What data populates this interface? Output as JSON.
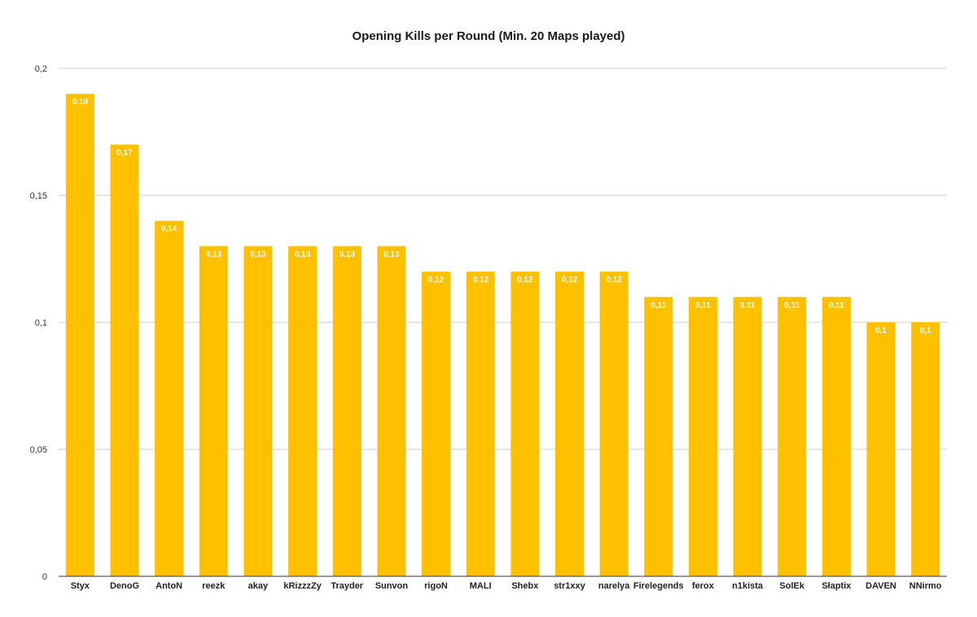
{
  "chart_data": {
    "type": "bar",
    "title": "Opening Kills per Round (Min. 20 Maps played)",
    "xlabel": "",
    "ylabel": "",
    "ylim": [
      0,
      0.2
    ],
    "yticks": [
      0,
      0.05,
      0.1,
      0.15,
      0.2
    ],
    "ytick_labels": [
      "0",
      "0,05",
      "0,1",
      "0,15",
      "0,2"
    ],
    "grid": true,
    "bar_color": "#FFC000",
    "categories": [
      "Styx",
      "DenoG",
      "AntoN",
      "reezk",
      "akay",
      "kRizzzZy",
      "Trayder",
      "Sunvon",
      "rigoN",
      "MALI",
      "Shebx",
      "str1xxy",
      "narelya",
      "Firelegends",
      "ferox",
      "n1kista",
      "SolEk",
      "Słaptix",
      "DAVEN",
      "NNirmo"
    ],
    "values": [
      0.19,
      0.17,
      0.14,
      0.13,
      0.13,
      0.13,
      0.13,
      0.13,
      0.12,
      0.12,
      0.12,
      0.12,
      0.12,
      0.11,
      0.11,
      0.11,
      0.11,
      0.11,
      0.1,
      0.1
    ],
    "value_labels": [
      "0,19",
      "0,17",
      "0,14",
      "0,13",
      "0,13",
      "0,13",
      "0,13",
      "0,13",
      "0,12",
      "0,12",
      "0,12",
      "0,12",
      "0,12",
      "0,11",
      "0,11",
      "0,11",
      "0,11",
      "0,11",
      "0,1",
      "0,1"
    ]
  }
}
